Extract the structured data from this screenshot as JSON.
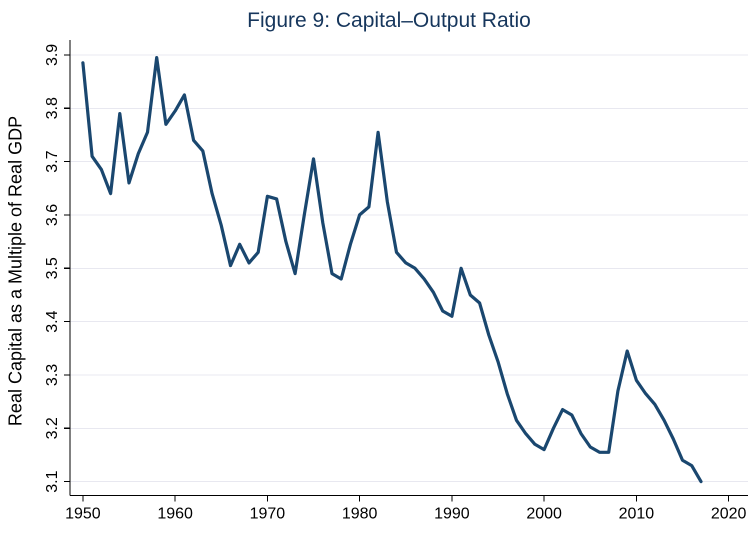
{
  "figure": {
    "title": "Figure 9: Capital–Output Ratio",
    "y_axis_title": "Real Capital as a Multiple of Real GDP"
  },
  "axes": {
    "y_ticks": [
      "3.1",
      "3.2",
      "3.3",
      "3.4",
      "3.5",
      "3.6",
      "3.7",
      "3.8",
      "3.9"
    ],
    "x_ticks": [
      "1950",
      "1960",
      "1970",
      "1980",
      "1990",
      "2000",
      "2010",
      "2020"
    ]
  },
  "colors": {
    "line": "#1a476f",
    "title": "#16365c",
    "grid": "#e8e8f0",
    "axis": "#000000",
    "tick_label": "#000000",
    "background": "#ffffff"
  },
  "chart_data": {
    "type": "line",
    "title": "Figure 9: Capital–Output Ratio",
    "xlabel": "",
    "ylabel": "Real Capital as a Multiple of Real GDP",
    "legend": "none",
    "grid": "horizontal-light",
    "xlim": [
      1948.6,
      2022.1
    ],
    "ylim": [
      3.074,
      3.928
    ],
    "x_tick_values": [
      1950,
      1960,
      1970,
      1980,
      1990,
      2000,
      2010,
      2020
    ],
    "y_tick_values": [
      3.1,
      3.2,
      3.3,
      3.4,
      3.5,
      3.6,
      3.7,
      3.8,
      3.9
    ],
    "x": [
      1950,
      1951,
      1952,
      1953,
      1954,
      1955,
      1956,
      1957,
      1958,
      1959,
      1960,
      1961,
      1962,
      1963,
      1964,
      1965,
      1966,
      1967,
      1968,
      1969,
      1970,
      1971,
      1972,
      1973,
      1974,
      1975,
      1976,
      1977,
      1978,
      1979,
      1980,
      1981,
      1982,
      1983,
      1984,
      1985,
      1986,
      1987,
      1988,
      1989,
      1990,
      1991,
      1992,
      1993,
      1994,
      1995,
      1996,
      1997,
      1998,
      1999,
      2000,
      2001,
      2002,
      2003,
      2004,
      2005,
      2006,
      2007,
      2008,
      2009,
      2010,
      2011,
      2012,
      2013,
      2014,
      2015,
      2016,
      2017
    ],
    "values": [
      3.885,
      3.71,
      3.685,
      3.64,
      3.79,
      3.66,
      3.715,
      3.755,
      3.895,
      3.77,
      3.795,
      3.825,
      3.74,
      3.72,
      3.64,
      3.58,
      3.505,
      3.545,
      3.51,
      3.53,
      3.635,
      3.63,
      3.55,
      3.49,
      3.6,
      3.705,
      3.585,
      3.49,
      3.48,
      3.545,
      3.6,
      3.615,
      3.755,
      3.625,
      3.53,
      3.51,
      3.5,
      3.48,
      3.455,
      3.42,
      3.41,
      3.5,
      3.45,
      3.435,
      3.375,
      3.325,
      3.265,
      3.215,
      3.19,
      3.17,
      3.16,
      3.2,
      3.235,
      3.225,
      3.19,
      3.165,
      3.155,
      3.155,
      3.27,
      3.345,
      3.29,
      3.265,
      3.245,
      3.215,
      3.18,
      3.14,
      3.13,
      3.1
    ]
  }
}
